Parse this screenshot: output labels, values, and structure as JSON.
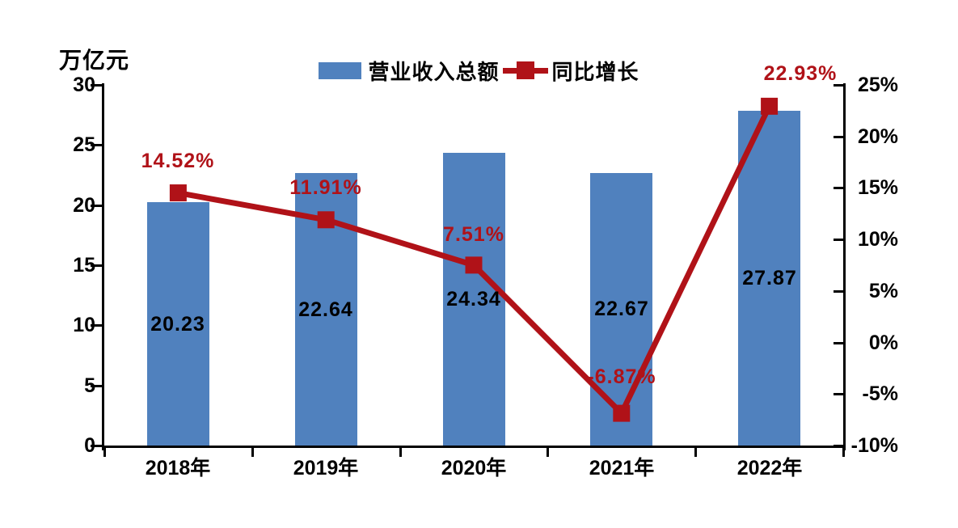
{
  "chart_data": {
    "type": "bar",
    "combo": "bar+line",
    "unit_label": "万亿元",
    "categories": [
      "2018年",
      "2019年",
      "2020年",
      "2021年",
      "2022年"
    ],
    "series": [
      {
        "name": "营业收入总额",
        "type": "bar",
        "axis": "left",
        "unit": "万亿元",
        "values": [
          20.23,
          22.64,
          24.34,
          22.67,
          27.87
        ],
        "labels": [
          "20.23",
          "22.64",
          "24.34",
          "22.67",
          "27.87"
        ]
      },
      {
        "name": "同比增长",
        "type": "line",
        "axis": "right",
        "unit": "%",
        "values": [
          14.52,
          11.91,
          7.51,
          -6.87,
          22.93
        ],
        "labels": [
          "14.52%",
          "11.91%",
          "7.51%",
          "-6.87%",
          "22.93%"
        ]
      }
    ],
    "left_axis": {
      "min": 0,
      "max": 30,
      "tick_step": 5,
      "tick_labels": [
        "0",
        "5",
        "10",
        "15",
        "20",
        "25",
        "30"
      ]
    },
    "right_axis": {
      "min": -10,
      "max": 25,
      "tick_step": 5,
      "tick_labels": [
        "-10%",
        "-5%",
        "0%",
        "5%",
        "10%",
        "15%",
        "20%",
        "25%"
      ]
    },
    "legend_position": "top",
    "grid": false,
    "colors": {
      "bar": "#5081BE",
      "line": "#B01218",
      "marker": "#B01218",
      "line_label": "#B01218",
      "bar_label": "#000000",
      "axis": "#000000"
    }
  }
}
